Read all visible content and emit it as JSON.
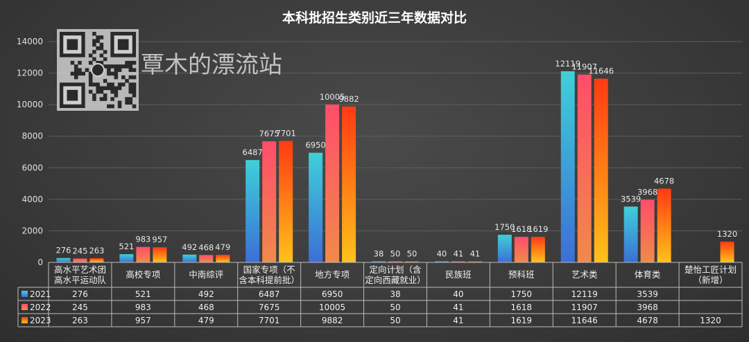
{
  "watermark": {
    "text": "覃木的漂流站",
    "icon": "qr-code-icon"
  },
  "chart_data": {
    "type": "bar",
    "title": "本科批招生类别近三年数据对比",
    "categories": [
      [
        "高水平艺术团",
        "高水平运动队"
      ],
      [
        "高校专项"
      ],
      [
        "中南综评"
      ],
      [
        "国家专项（不",
        "含本科提前批）"
      ],
      [
        "地方专项"
      ],
      [
        "定向计划（含",
        "定向西藏就业）"
      ],
      [
        "民族班"
      ],
      [
        "预科班"
      ],
      [
        "艺术类"
      ],
      [
        "体育类"
      ],
      [
        "楚怡工匠计划",
        "（新增）"
      ]
    ],
    "series": [
      {
        "name": "2021",
        "values": [
          276,
          521,
          492,
          6487,
          6950,
          38,
          40,
          1750,
          12119,
          3539,
          null
        ],
        "color_top": "#3fd0d8",
        "color_bottom": "#3b6fd6"
      },
      {
        "name": "2022",
        "values": [
          245,
          983,
          468,
          7675,
          10005,
          50,
          41,
          1618,
          11907,
          3968,
          null
        ],
        "color_top": "#ff4d6a",
        "color_bottom": "#f08a4a"
      },
      {
        "name": "2023",
        "values": [
          263,
          957,
          479,
          7701,
          9882,
          50,
          41,
          1619,
          11646,
          4678,
          1320
        ],
        "color_top": "#ff3a12",
        "color_bottom": "#ffc21a"
      }
    ],
    "bar_labels": [
      [
        "276",
        "521",
        "492",
        "6487",
        "6950",
        "38",
        "40",
        "1750",
        "12119",
        "3539",
        ""
      ],
      [
        "245",
        "983",
        "468",
        "7675",
        "10005",
        "50",
        "41",
        "1618",
        "11907",
        "3968",
        ""
      ],
      [
        "263",
        "957",
        "479",
        "7701",
        "9882",
        "50",
        "41",
        "1619",
        "11646",
        "4678",
        "1320"
      ]
    ],
    "table_values": [
      [
        "276",
        "521",
        "492",
        "6487",
        "6950",
        "38",
        "40",
        "1750",
        "12119",
        "3539",
        ""
      ],
      [
        "245",
        "983",
        "468",
        "7675",
        "10005",
        "50",
        "41",
        "1618",
        "11907",
        "3968",
        ""
      ],
      [
        "263",
        "957",
        "479",
        "7701",
        "9882",
        "50",
        "41",
        "1619",
        "11646",
        "4678",
        "1320"
      ]
    ],
    "yticks": [
      "0",
      "2000",
      "4000",
      "6000",
      "8000",
      "10000",
      "12000",
      "14000"
    ],
    "ylim": [
      0,
      14000
    ],
    "grid": true,
    "legend": "data-table-left"
  }
}
